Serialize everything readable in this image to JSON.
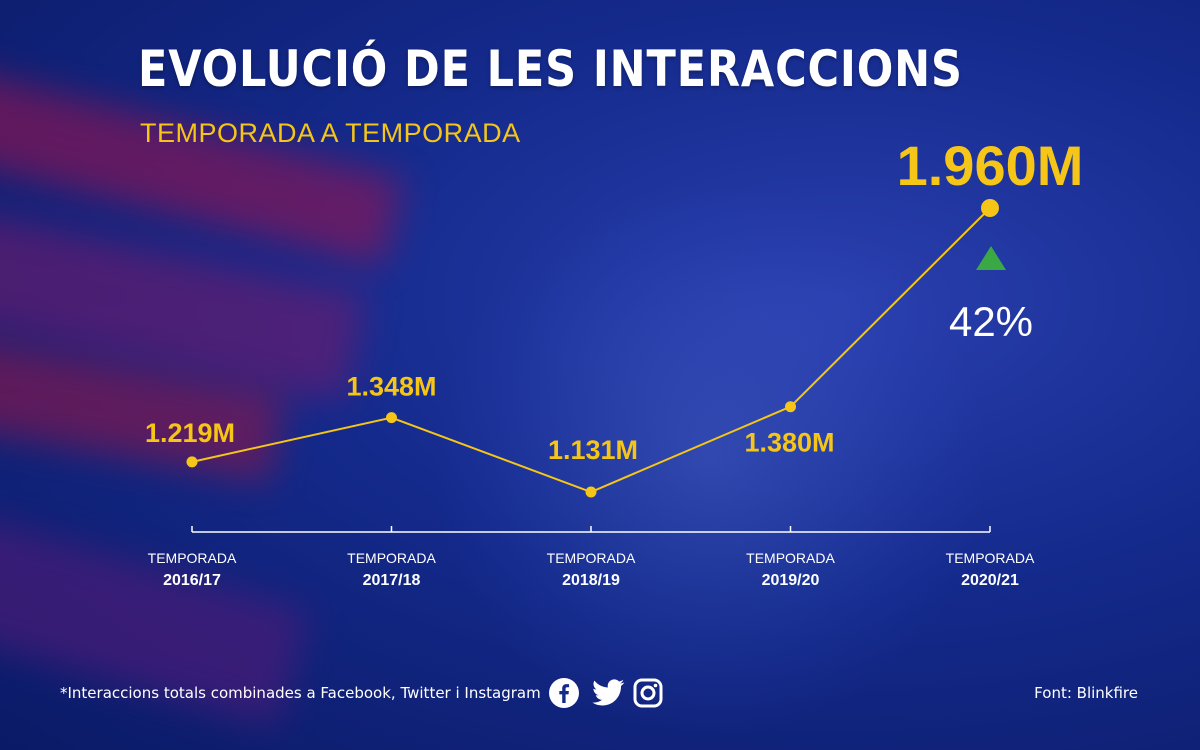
{
  "header": {
    "title": "EVOLUCIÓ DE LES INTERACCIONS",
    "subtitle": "TEMPORADA A TEMPORADA"
  },
  "chart_data": {
    "type": "line",
    "title": "EVOLUCIÓ DE LES INTERACCIONS",
    "subtitle": "TEMPORADA A TEMPORADA",
    "categories": [
      {
        "top": "TEMPORADA",
        "bottom": "2016/17"
      },
      {
        "top": "TEMPORADA",
        "bottom": "2017/18"
      },
      {
        "top": "TEMPORADA",
        "bottom": "2018/19"
      },
      {
        "top": "TEMPORADA",
        "bottom": "2019/20"
      },
      {
        "top": "TEMPORADA",
        "bottom": "2020/21"
      }
    ],
    "values": [
      1219,
      1348,
      1131,
      1380,
      1960
    ],
    "value_labels": [
      "1.219M",
      "1.348M",
      "1.131M",
      "1.380M",
      "1.960M"
    ],
    "unit": "M",
    "ylim": [
      1100,
      2000
    ],
    "grid": false,
    "annotation": {
      "category_index": 4,
      "direction": "up",
      "change": "42%"
    },
    "line_color": "#f5c518",
    "up_arrow_color": "#3aa845"
  },
  "footer": {
    "note": "*Interaccions totals combinades a Facebook, Twitter i Instagram",
    "source": "Font: Blinkfire",
    "social_icons": [
      "facebook-icon",
      "twitter-icon",
      "instagram-icon"
    ]
  }
}
